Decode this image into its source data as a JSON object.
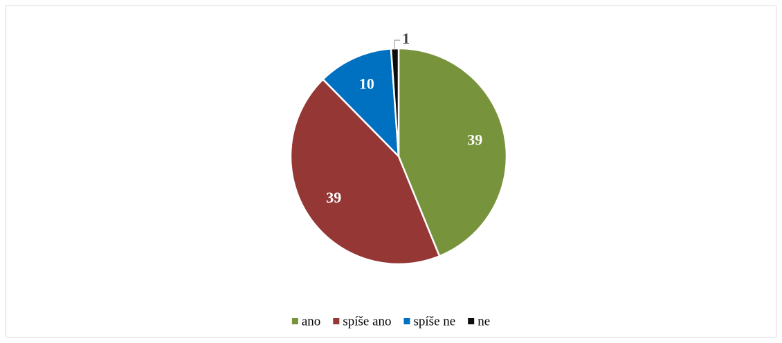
{
  "chart_data": {
    "type": "pie",
    "categories": [
      "ano",
      "spíše ano",
      "spíše ne",
      "ne"
    ],
    "values": [
      39,
      39,
      10,
      1
    ],
    "colors": [
      "#77933c",
      "#953735",
      "#0070c0",
      "#0d0d0d"
    ],
    "legend": "bottom"
  }
}
